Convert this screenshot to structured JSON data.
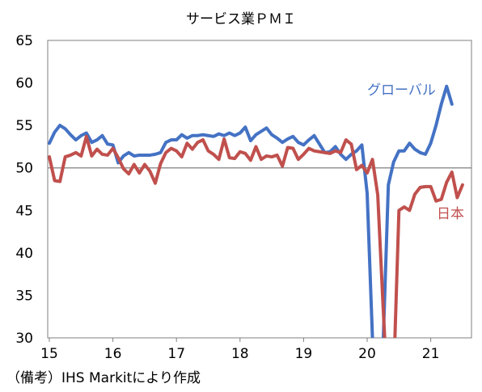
{
  "chart_data": {
    "type": "line",
    "title": "サービス業ＰＭＩ",
    "xlabel": "",
    "ylabel": "",
    "ylim": [
      30,
      65
    ],
    "yticks": [
      30,
      35,
      40,
      45,
      50,
      55,
      60,
      65
    ],
    "x_tick_labels": [
      "15",
      "16",
      "17",
      "18",
      "19",
      "20",
      "21"
    ],
    "x_start": "2015-01",
    "reference_line": 50,
    "grid": false,
    "series": [
      {
        "name": "グローバル",
        "color": "#4472C4",
        "values": [
          52.9,
          54.2,
          55.0,
          54.6,
          53.9,
          53.3,
          53.8,
          54.1,
          53.0,
          53.3,
          53.8,
          52.8,
          52.7,
          50.6,
          51.4,
          51.8,
          51.4,
          51.5,
          51.5,
          51.5,
          51.6,
          51.8,
          53.0,
          53.3,
          53.3,
          53.9,
          53.5,
          53.8,
          53.8,
          53.9,
          53.8,
          53.7,
          54.0,
          53.8,
          54.1,
          53.8,
          54.1,
          54.8,
          53.2,
          53.9,
          54.3,
          54.7,
          53.9,
          53.5,
          53.0,
          53.4,
          53.7,
          53.0,
          52.7,
          53.3,
          53.8,
          52.8,
          51.8,
          51.9,
          52.5,
          51.6,
          51.0,
          51.6,
          52.0,
          52.7,
          47.0,
          30.0,
          26.0,
          29.0,
          48.0,
          50.7,
          52.0,
          52.0,
          52.9,
          52.2,
          51.8,
          51.6,
          52.9,
          55.0,
          57.5,
          59.6,
          57.5
        ]
      },
      {
        "name": "日本",
        "color": "#C0504D",
        "values": [
          51.3,
          48.5,
          48.4,
          51.3,
          51.5,
          51.8,
          51.4,
          53.7,
          51.4,
          52.2,
          51.6,
          51.5,
          52.3,
          51.2,
          49.9,
          49.3,
          50.4,
          49.4,
          50.4,
          49.6,
          48.2,
          50.5,
          51.8,
          52.3,
          52.0,
          51.3,
          52.9,
          52.2,
          53.0,
          53.3,
          52.0,
          51.6,
          51.0,
          53.4,
          51.2,
          51.1,
          51.9,
          51.7,
          50.9,
          52.5,
          51.0,
          51.4,
          51.3,
          51.5,
          50.2,
          52.4,
          52.3,
          51.0,
          51.6,
          52.3,
          52.0,
          51.9,
          51.8,
          51.7,
          52.0,
          51.8,
          53.3,
          52.8,
          49.8,
          50.3,
          49.4,
          51.0,
          46.8,
          33.8,
          21.5,
          25.3,
          45.0,
          45.4,
          45.0,
          46.9,
          47.7,
          47.8,
          47.8,
          46.1,
          46.3,
          48.3,
          49.5,
          46.5,
          48.0
        ]
      }
    ]
  },
  "note": "（備考）IHS Markitにより作成"
}
